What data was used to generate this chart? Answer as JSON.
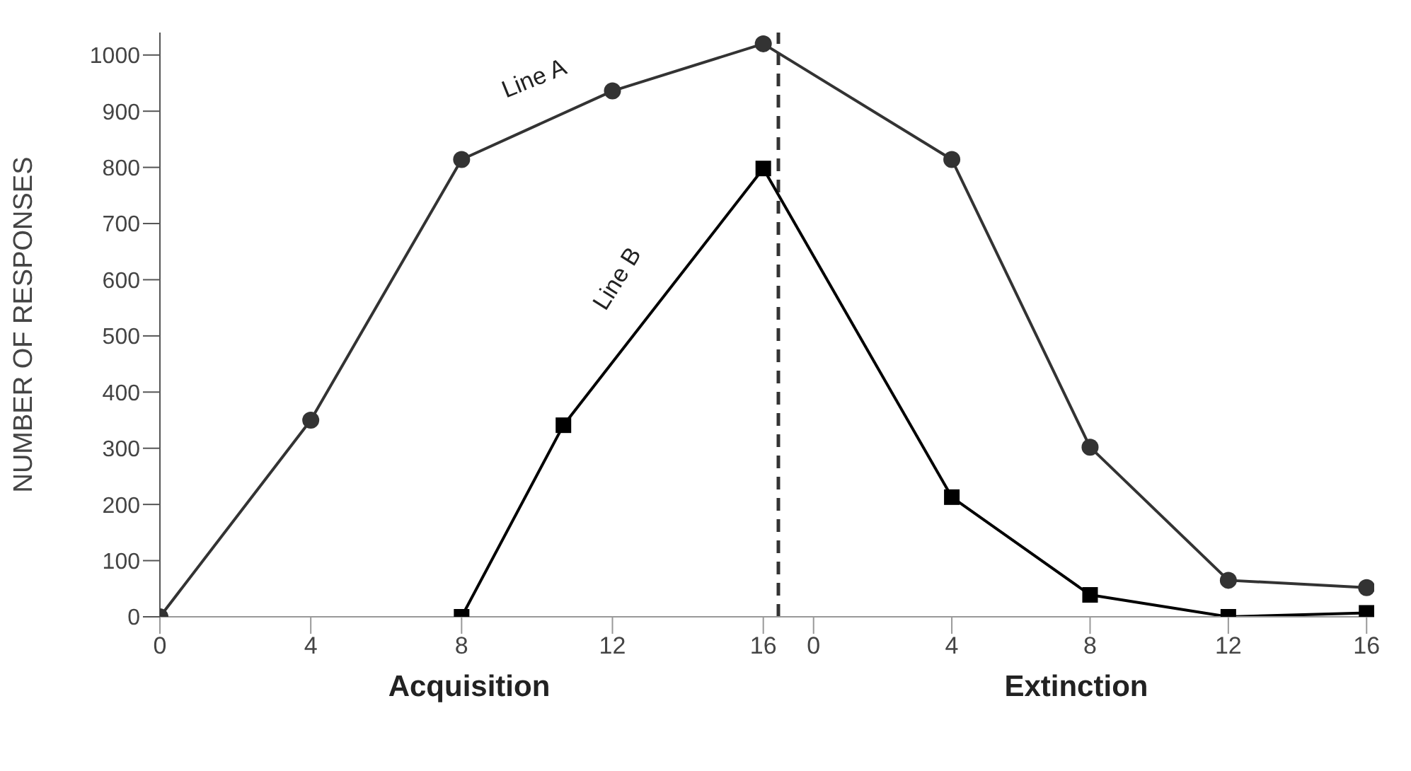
{
  "chart_data": {
    "type": "line",
    "ylabel": "NUMBER OF RESPONSES",
    "annotations": [
      "Acquisition",
      "Extinction"
    ],
    "xlim": [
      0,
      32.2
    ],
    "xticks": [
      0,
      4,
      8,
      12,
      16
    ],
    "x2lim": [
      -18.91,
      16.22
    ],
    "x2ticks": [
      0,
      4,
      8,
      12,
      16
    ],
    "ylim": [
      0,
      1040
    ],
    "yticks": [
      0,
      100,
      200,
      300,
      400,
      500,
      600,
      700,
      800,
      900,
      1000
    ],
    "grid": false,
    "legend": false,
    "ref_lines": [
      {
        "axis": "x",
        "value": 16.4,
        "color": "#333333",
        "line_style": "dashed"
      }
    ],
    "series": [
      {
        "name": "Line A",
        "color": "#333333",
        "marker": "circle",
        "x": [
          0,
          4,
          8,
          12,
          16
        ],
        "values": [
          0,
          350,
          814,
          936,
          1020
        ]
      },
      {
        "color": "#333333",
        "marker": "none",
        "x": [
          16,
          21
        ],
        "values": [
          1020,
          814
        ]
      },
      {
        "color": "#333333",
        "marker": "circle",
        "axis": "x2",
        "x": [
          4,
          8,
          12,
          16
        ],
        "values": [
          814,
          302,
          65,
          52
        ]
      },
      {
        "name": "Line B",
        "color": "#000000",
        "marker": "square",
        "x": [
          8,
          10.7,
          16
        ],
        "values": [
          0,
          341,
          798
        ]
      },
      {
        "color": "#000000",
        "marker": "none",
        "x": [
          16,
          21
        ],
        "values": [
          798,
          213
        ]
      },
      {
        "color": "#000000",
        "marker": "square",
        "axis": "x2",
        "x": [
          4,
          8,
          12,
          16
        ],
        "values": [
          213,
          39,
          0,
          7
        ]
      }
    ]
  }
}
